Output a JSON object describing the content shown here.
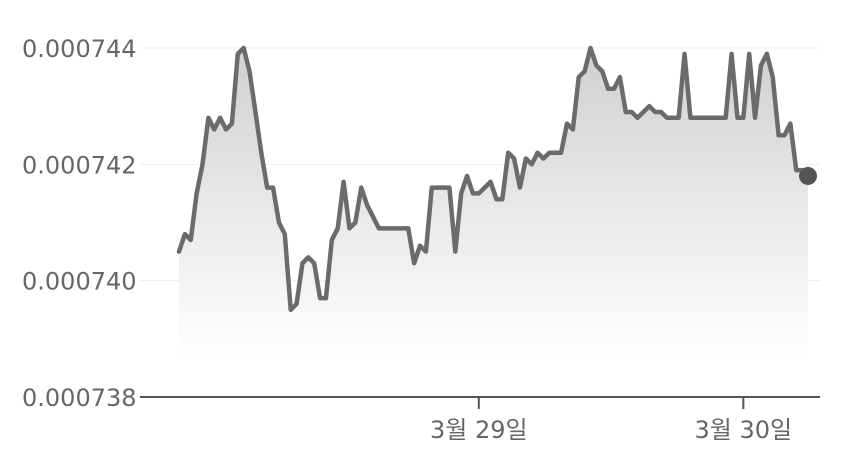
{
  "chart_data": {
    "type": "area",
    "title": "",
    "xlabel": "",
    "ylabel": "",
    "ylim": [
      0.000738,
      0.0007444
    ],
    "y_ticks": [
      "0.000744",
      "0.000742",
      "0.000740",
      "0.000738"
    ],
    "y_tick_values": [
      0.000744,
      0.000742,
      0.00074,
      0.000738
    ],
    "x_ticks": [
      {
        "label": "3월 29일",
        "index": 51
      },
      {
        "label": "3월 30일",
        "index": 96
      }
    ],
    "grid": true,
    "legend": "none",
    "colors": {
      "line": "#6b6b6b",
      "fill_top": "#cfd0d2",
      "fill_bottom": "#ffffff",
      "grid": "#eeeeee",
      "axis": "#555555"
    },
    "series": [
      {
        "values": [
          0.0007405,
          0.0007408,
          0.0007407,
          0.0007415,
          0.000742,
          0.0007428,
          0.0007426,
          0.0007428,
          0.0007426,
          0.0007427,
          0.0007439,
          0.000744,
          0.0007436,
          0.0007429,
          0.0007422,
          0.0007416,
          0.0007416,
          0.000741,
          0.0007408,
          0.0007395,
          0.0007396,
          0.0007403,
          0.0007404,
          0.0007403,
          0.0007397,
          0.0007397,
          0.0007407,
          0.0007409,
          0.0007417,
          0.0007409,
          0.000741,
          0.0007416,
          0.0007413,
          0.0007411,
          0.0007409,
          0.0007409,
          0.0007409,
          0.0007409,
          0.0007409,
          0.0007409,
          0.0007403,
          0.0007406,
          0.0007405,
          0.0007416,
          0.0007416,
          0.0007416,
          0.0007416,
          0.0007405,
          0.0007415,
          0.0007418,
          0.0007415,
          0.0007415,
          0.0007416,
          0.0007417,
          0.0007414,
          0.0007414,
          0.0007422,
          0.0007421,
          0.0007416,
          0.0007421,
          0.000742,
          0.0007422,
          0.0007421,
          0.0007422,
          0.0007422,
          0.0007422,
          0.0007427,
          0.0007426,
          0.0007435,
          0.0007436,
          0.000744,
          0.0007437,
          0.0007436,
          0.0007433,
          0.0007433,
          0.0007435,
          0.0007429,
          0.0007429,
          0.0007428,
          0.0007429,
          0.000743,
          0.0007429,
          0.0007429,
          0.0007428,
          0.0007428,
          0.0007428,
          0.0007439,
          0.0007428,
          0.0007428,
          0.0007428,
          0.0007428,
          0.0007428,
          0.0007428,
          0.0007428,
          0.0007439,
          0.0007428,
          0.0007428,
          0.0007439,
          0.0007428,
          0.0007437,
          0.0007439,
          0.0007435,
          0.0007425,
          0.0007425,
          0.0007427,
          0.0007419,
          0.0007419,
          0.0007418
        ]
      }
    ]
  }
}
